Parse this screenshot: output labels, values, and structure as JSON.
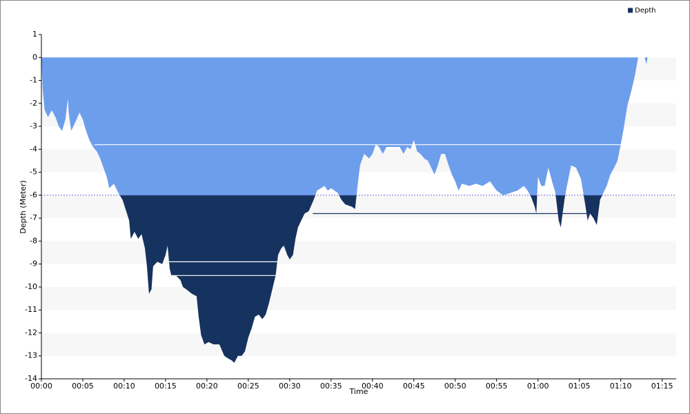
{
  "chart_data": {
    "type": "area",
    "x_label": "Time",
    "y_label": "Depth (Meter)",
    "xlim": [
      0,
      76.7
    ],
    "xticks": [
      {
        "value": 0,
        "label": "00:00"
      },
      {
        "value": 5,
        "label": "00:05"
      },
      {
        "value": 10,
        "label": "00:10"
      },
      {
        "value": 15,
        "label": "00:15"
      },
      {
        "value": 20,
        "label": "00:20"
      },
      {
        "value": 25,
        "label": "00:25"
      },
      {
        "value": 30,
        "label": "00:30"
      },
      {
        "value": 35,
        "label": "00:35"
      },
      {
        "value": 40,
        "label": "00:40"
      },
      {
        "value": 45,
        "label": "00:45"
      },
      {
        "value": 50,
        "label": "00:50"
      },
      {
        "value": 55,
        "label": "00:55"
      },
      {
        "value": 60,
        "label": "01:00"
      },
      {
        "value": 65,
        "label": "01:05"
      },
      {
        "value": 70,
        "label": "01:10"
      },
      {
        "value": 75,
        "label": "01:15"
      }
    ],
    "ylim": [
      -14,
      1
    ],
    "yticks": [
      1,
      0,
      -1,
      -2,
      -3,
      -4,
      -5,
      -6,
      -7,
      -8,
      -9,
      -10,
      -11,
      -12,
      -13,
      -14
    ],
    "threshold": -6,
    "threshold_color": "#6b6bd6",
    "legend": "top-right",
    "series": [
      {
        "name": "Depth",
        "color": "#16325f",
        "color_above": "#6d9eeb",
        "x": [
          0,
          0.17,
          0.4,
          0.8,
          1.25,
          1.7,
          2.1,
          2.5,
          2.9,
          3.2,
          3.3,
          3.6,
          4,
          4.6,
          5,
          5.4,
          5.8,
          6.25,
          6.7,
          7.1,
          7.5,
          7.9,
          8.2,
          8.75,
          9.3,
          9.8,
          10.25,
          10.6,
          10.8,
          11.25,
          11.7,
          12.1,
          12.5,
          12.75,
          13,
          13.3,
          13.5,
          14,
          14.6,
          15,
          15.25,
          15.5,
          15.7,
          16.25,
          16.8,
          17.1,
          17.5,
          18.2,
          18.75,
          19,
          19.3,
          19.7,
          20.2,
          20.8,
          21.5,
          22.1,
          22.5,
          23,
          23.3,
          23.75,
          24.2,
          24.6,
          25,
          25.4,
          25.8,
          26.25,
          26.7,
          27.1,
          27.5,
          27.9,
          28.3,
          28.6,
          29,
          29.3,
          29.7,
          30,
          30.4,
          30.7,
          31,
          31.4,
          31.8,
          32.3,
          32.9,
          33.3,
          33.75,
          34.2,
          34.6,
          35,
          35.8,
          36.25,
          36.7,
          37.5,
          37.9,
          38.2,
          38.5,
          39,
          39.6,
          40,
          40.4,
          40.8,
          41.25,
          41.7,
          42.1,
          42.5,
          42.9,
          43.3,
          43.75,
          44.2,
          44.6,
          45,
          45.4,
          45.8,
          46.25,
          46.7,
          47.1,
          47.5,
          47.9,
          48.3,
          48.75,
          49.2,
          49.6,
          50,
          50.4,
          50.8,
          51.7,
          52.5,
          53.3,
          54.2,
          55,
          55.8,
          56.7,
          57.5,
          58.3,
          58.75,
          59.2,
          59.6,
          59.8,
          60,
          60.4,
          60.8,
          61.25,
          61.7,
          62.1,
          62.5,
          62.75,
          63.2,
          63.5,
          64,
          64.6,
          65.2,
          65.7,
          66,
          66.3,
          66.7,
          67.1,
          67.5,
          67.9,
          68.3,
          68.75,
          69.2,
          69.6,
          70,
          70.4,
          70.8,
          71.25,
          71.7,
          72.1,
          72.5,
          72.9,
          73.1,
          73.25
        ],
        "values": [
          0,
          -1.5,
          -2.3,
          -2.6,
          -2.3,
          -2.6,
          -3,
          -3.2,
          -2.7,
          -1.8,
          -2.4,
          -3.2,
          -2.9,
          -2.4,
          -2.7,
          -3.2,
          -3.6,
          -3.9,
          -4.1,
          -4.4,
          -4.8,
          -5.2,
          -5.7,
          -5.5,
          -5.9,
          -6.2,
          -6.7,
          -7.1,
          -7.9,
          -7.6,
          -7.9,
          -7.7,
          -8.3,
          -9.1,
          -10.3,
          -10.1,
          -9.1,
          -8.9,
          -9,
          -8.6,
          -8.2,
          -9.2,
          -9.5,
          -9.5,
          -9.7,
          -10,
          -10.1,
          -10.3,
          -10.4,
          -11.3,
          -12.1,
          -12.5,
          -12.4,
          -12.5,
          -12.5,
          -13,
          -13.1,
          -13.2,
          -13.3,
          -13,
          -13,
          -12.8,
          -12.2,
          -11.8,
          -11.3,
          -11.2,
          -11.4,
          -11.2,
          -10.7,
          -10.1,
          -9.5,
          -8.6,
          -8.3,
          -8.2,
          -8.6,
          -8.8,
          -8.6,
          -7.9,
          -7.4,
          -7.1,
          -6.8,
          -6.7,
          -6.2,
          -5.8,
          -5.7,
          -5.6,
          -5.8,
          -5.7,
          -5.9,
          -6.2,
          -6.4,
          -6.5,
          -6.6,
          -5.6,
          -4.7,
          -4.2,
          -4.4,
          -4.2,
          -3.8,
          -3.9,
          -4.2,
          -3.9,
          -3.9,
          -3.9,
          -3.9,
          -3.9,
          -4.2,
          -3.9,
          -4,
          -3.6,
          -4.1,
          -4.2,
          -4.4,
          -4.5,
          -4.8,
          -5.1,
          -4.7,
          -4.2,
          -4.2,
          -4.7,
          -5.1,
          -5.4,
          -5.8,
          -5.5,
          -5.6,
          -5.5,
          -5.6,
          -5.4,
          -5.8,
          -6,
          -5.9,
          -5.8,
          -5.6,
          -5.8,
          -6.1,
          -6.5,
          -6.8,
          -5.2,
          -5.6,
          -5.6,
          -4.8,
          -5.4,
          -5.9,
          -7.1,
          -7.4,
          -6.2,
          -5.6,
          -4.7,
          -4.8,
          -5.3,
          -6.4,
          -7.1,
          -6.8,
          -7,
          -7.3,
          -6.2,
          -5.9,
          -5.6,
          -5.1,
          -4.8,
          -4.5,
          -3.8,
          -3,
          -2.1,
          -1.5,
          -0.8,
          0,
          0,
          0,
          -0.3,
          0
        ]
      }
    ],
    "levels": [
      {
        "start": 6.4,
        "end": 70,
        "depth": -3.8,
        "color": "#ffffff"
      },
      {
        "start": 15.4,
        "end": 28.6,
        "depth": -8.9,
        "color": "#ffffff"
      },
      {
        "start": 15.7,
        "end": 28.4,
        "depth": -9.5,
        "color": "#ffffff"
      },
      {
        "start": 32.8,
        "end": 66,
        "depth": -6.8,
        "color": "#16325f"
      }
    ]
  }
}
